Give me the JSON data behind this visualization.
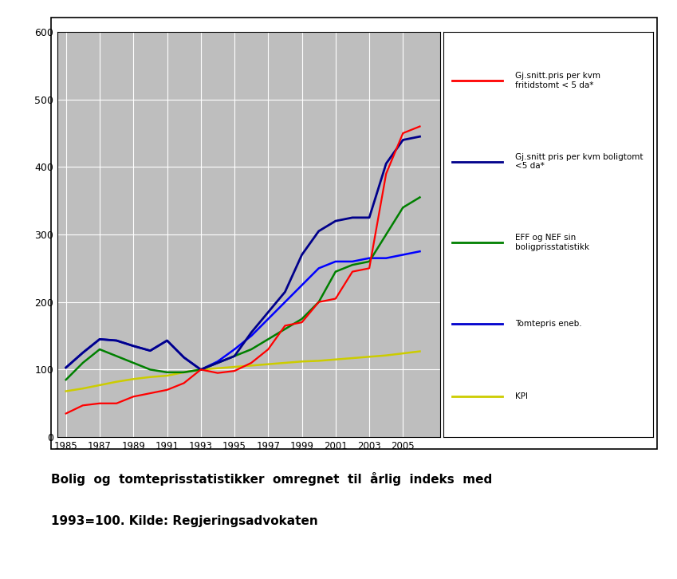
{
  "years": [
    1985,
    1986,
    1987,
    1988,
    1989,
    1990,
    1991,
    1992,
    1993,
    1994,
    1995,
    1996,
    1997,
    1998,
    1999,
    2000,
    2001,
    2002,
    2003,
    2004,
    2005,
    2006
  ],
  "red": [
    35,
    47,
    50,
    50,
    60,
    65,
    70,
    80,
    100,
    95,
    98,
    110,
    130,
    165,
    170,
    200,
    205,
    245,
    250,
    390,
    450,
    460
  ],
  "dark_blue": [
    103,
    125,
    145,
    143,
    135,
    128,
    143,
    118,
    100,
    110,
    120,
    155,
    185,
    215,
    270,
    305,
    320,
    325,
    325,
    405,
    440,
    445
  ],
  "green": [
    85,
    110,
    130,
    120,
    110,
    100,
    96,
    96,
    100,
    110,
    120,
    130,
    145,
    160,
    175,
    200,
    245,
    255,
    260,
    300,
    340,
    355
  ],
  "blue": [
    103,
    125,
    145,
    143,
    135,
    128,
    143,
    118,
    100,
    112,
    130,
    150,
    175,
    200,
    225,
    250,
    260,
    260,
    265,
    265,
    270,
    275
  ],
  "yellow": [
    68,
    72,
    77,
    82,
    86,
    89,
    91,
    96,
    100,
    102,
    104,
    106,
    108,
    110,
    112,
    113,
    115,
    117,
    119,
    121,
    124,
    127
  ],
  "plot_bg": "#bebebe",
  "fig_bg": "#ffffff",
  "ylim": [
    0,
    600
  ],
  "yticks": [
    0,
    100,
    200,
    300,
    400,
    500,
    600
  ],
  "xlim_left": 1984.5,
  "xlim_right": 2007.2,
  "xticks": [
    1985,
    1987,
    1989,
    1991,
    1993,
    1995,
    1997,
    1999,
    2001,
    2003,
    2005
  ],
  "legend_labels": [
    "Gj.snitt.pris per kvm\nfritidstomt < 5 da*",
    "Gj.snitt pris per kvm boligtomt\n<5 da*",
    "EFF og NEF sin\nboligprisstatistikk",
    "Tomtepris eneb.",
    "KPI"
  ],
  "legend_colors": [
    "#ff0000",
    "#00008b",
    "#008000",
    "#0000cd",
    "#cccc00"
  ],
  "caption_line1": "Bolig  og  tomteprisstatistikker  omregnet  til  årlig  indeks  med",
  "caption_line2": "1993=100. Kilde: Regjeringsadvokaten"
}
